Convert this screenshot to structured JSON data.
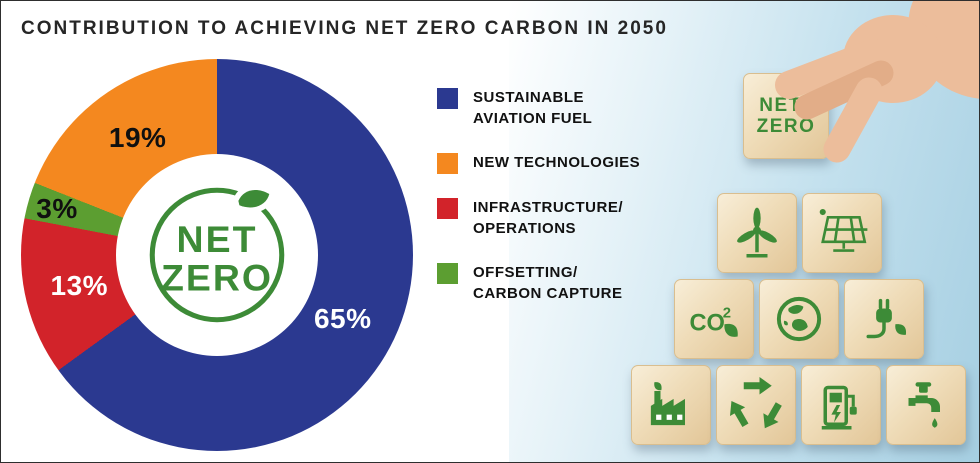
{
  "title": "CONTRIBUTION TO ACHIEVING NET ZERO CARBON IN 2050",
  "chart_data": {
    "type": "pie",
    "donut": true,
    "title": "CONTRIBUTION TO ACHIEVING NET ZERO CARBON IN 2050",
    "legend_position": "right",
    "segments": [
      {
        "label": "SUSTAINABLE AVIATION FUEL",
        "value": 65,
        "pct_label": "65%",
        "color": "#2b3990",
        "pct_color": "#ffffff"
      },
      {
        "label": "INFRASTRUCTURE/OPERATIONS",
        "value": 13,
        "pct_label": "13%",
        "color": "#d2232a",
        "pct_color": "#ffffff"
      },
      {
        "label": "OFFSETTING/CARBON CAPTURE",
        "value": 3,
        "pct_label": "3%",
        "color": "#5c9e31",
        "pct_color": "#101010"
      },
      {
        "label": "NEW TECHNOLOGIES",
        "value": 19,
        "pct_label": "19%",
        "color": "#f4881f",
        "pct_color": "#101010"
      }
    ],
    "center_logo": {
      "line1": "NET",
      "line2": "ZERO",
      "color": "#4a9b3f"
    }
  },
  "legend": {
    "items": [
      {
        "label": "SUSTAINABLE\nAVIATION FUEL",
        "color": "#2b3990"
      },
      {
        "label": "NEW TECHNOLOGIES",
        "color": "#f4881f"
      },
      {
        "label": "INFRASTRUCTURE/\nOPERATIONS",
        "color": "#d2232a"
      },
      {
        "label": "OFFSETTING/\nCARBON CAPTURE",
        "color": "#5c9e31"
      }
    ]
  },
  "illustration": {
    "held_block": {
      "line1": "NET",
      "line2": "ZERO"
    },
    "block_rows": [
      [
        "wind-turbine",
        "solar-panel"
      ],
      [
        "co2-leaf",
        "earth-globe",
        "electric-plug"
      ],
      [
        "eco-factory",
        "recycle",
        "ev-charger",
        "water-tap"
      ]
    ],
    "co2_text": {
      "main": "CO",
      "sup": "2"
    },
    "icon_color": "#3d8b37",
    "wood_light": "#f8eed8",
    "wood_dark": "#e2c698",
    "sky_top": "#e3f1f7",
    "sky_deep": "#a6cfe2",
    "skin": "#ecbd9b",
    "skin_shade": "#e2ad88"
  }
}
